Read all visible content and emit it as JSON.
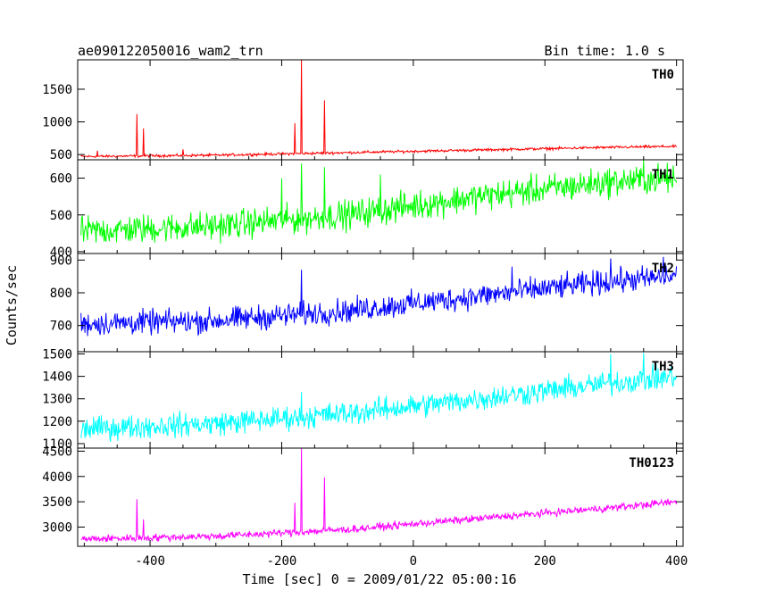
{
  "chart_data": {
    "type": "line",
    "title_left": "ae090122050016_wam2_trn",
    "title_right": "Bin time: 1.0 s",
    "xlabel": "Time [sec] 0 = 2009/01/22 05:00:16",
    "ylabel": "Counts/sec",
    "x_range": [
      -510,
      410
    ],
    "x_ticks": [
      -400,
      -200,
      0,
      200,
      400
    ],
    "grid": false,
    "panels": [
      {
        "name": "TH0",
        "color": "#ff0000",
        "ylim": [
          420,
          1950
        ],
        "y_ticks": [
          500,
          1000,
          1500
        ],
        "baseline": [
          [
            -505,
            470
          ],
          [
            -300,
            490
          ],
          [
            -100,
            530
          ],
          [
            100,
            570
          ],
          [
            300,
            610
          ],
          [
            400,
            625
          ]
        ],
        "noise": 15,
        "spikes": [
          [
            -420,
            1120
          ],
          [
            -410,
            900
          ],
          [
            -180,
            980
          ],
          [
            -170,
            1950
          ],
          [
            -135,
            1330
          ],
          [
            -480,
            560
          ],
          [
            -350,
            580
          ]
        ]
      },
      {
        "name": "TH1",
        "color": "#00ff00",
        "ylim": [
          395,
          650
        ],
        "y_ticks": [
          400,
          500,
          600
        ],
        "baseline": [
          [
            -505,
            455
          ],
          [
            -300,
            470
          ],
          [
            -100,
            500
          ],
          [
            100,
            550
          ],
          [
            300,
            590
          ],
          [
            400,
            600
          ]
        ],
        "noise": 30,
        "spikes": [
          [
            -170,
            640
          ],
          [
            -135,
            630
          ],
          [
            -200,
            600
          ],
          [
            -50,
            610
          ],
          [
            350,
            650
          ]
        ]
      },
      {
        "name": "TH2",
        "color": "#0000ff",
        "ylim": [
          620,
          920
        ],
        "y_ticks": [
          700,
          800,
          900
        ],
        "baseline": [
          [
            -505,
            705
          ],
          [
            -300,
            715
          ],
          [
            -100,
            745
          ],
          [
            100,
            790
          ],
          [
            300,
            835
          ],
          [
            400,
            850
          ]
        ],
        "noise": 28,
        "spikes": [
          [
            -170,
            870
          ],
          [
            380,
            910
          ],
          [
            300,
            905
          ],
          [
            150,
            880
          ]
        ]
      },
      {
        "name": "TH3",
        "color": "#00ffff",
        "ylim": [
          1080,
          1510
        ],
        "y_ticks": [
          1100,
          1200,
          1300,
          1400,
          1500
        ],
        "baseline": [
          [
            -505,
            1165
          ],
          [
            -300,
            1190
          ],
          [
            -100,
            1235
          ],
          [
            100,
            1300
          ],
          [
            300,
            1370
          ],
          [
            400,
            1400
          ]
        ],
        "noise": 40,
        "spikes": [
          [
            -170,
            1330
          ],
          [
            300,
            1500
          ],
          [
            350,
            1505
          ]
        ]
      },
      {
        "name": "TH0123",
        "color": "#ff00ff",
        "ylim": [
          2620,
          4560
        ],
        "y_ticks": [
          3000,
          3500,
          4000,
          4500
        ],
        "baseline": [
          [
            -505,
            2760
          ],
          [
            -300,
            2820
          ],
          [
            -100,
            2950
          ],
          [
            100,
            3170
          ],
          [
            300,
            3380
          ],
          [
            400,
            3500
          ]
        ],
        "noise": 55,
        "spikes": [
          [
            -420,
            3550
          ],
          [
            -410,
            3150
          ],
          [
            -180,
            3480
          ],
          [
            -170,
            4560
          ],
          [
            -135,
            3980
          ]
        ]
      }
    ]
  }
}
